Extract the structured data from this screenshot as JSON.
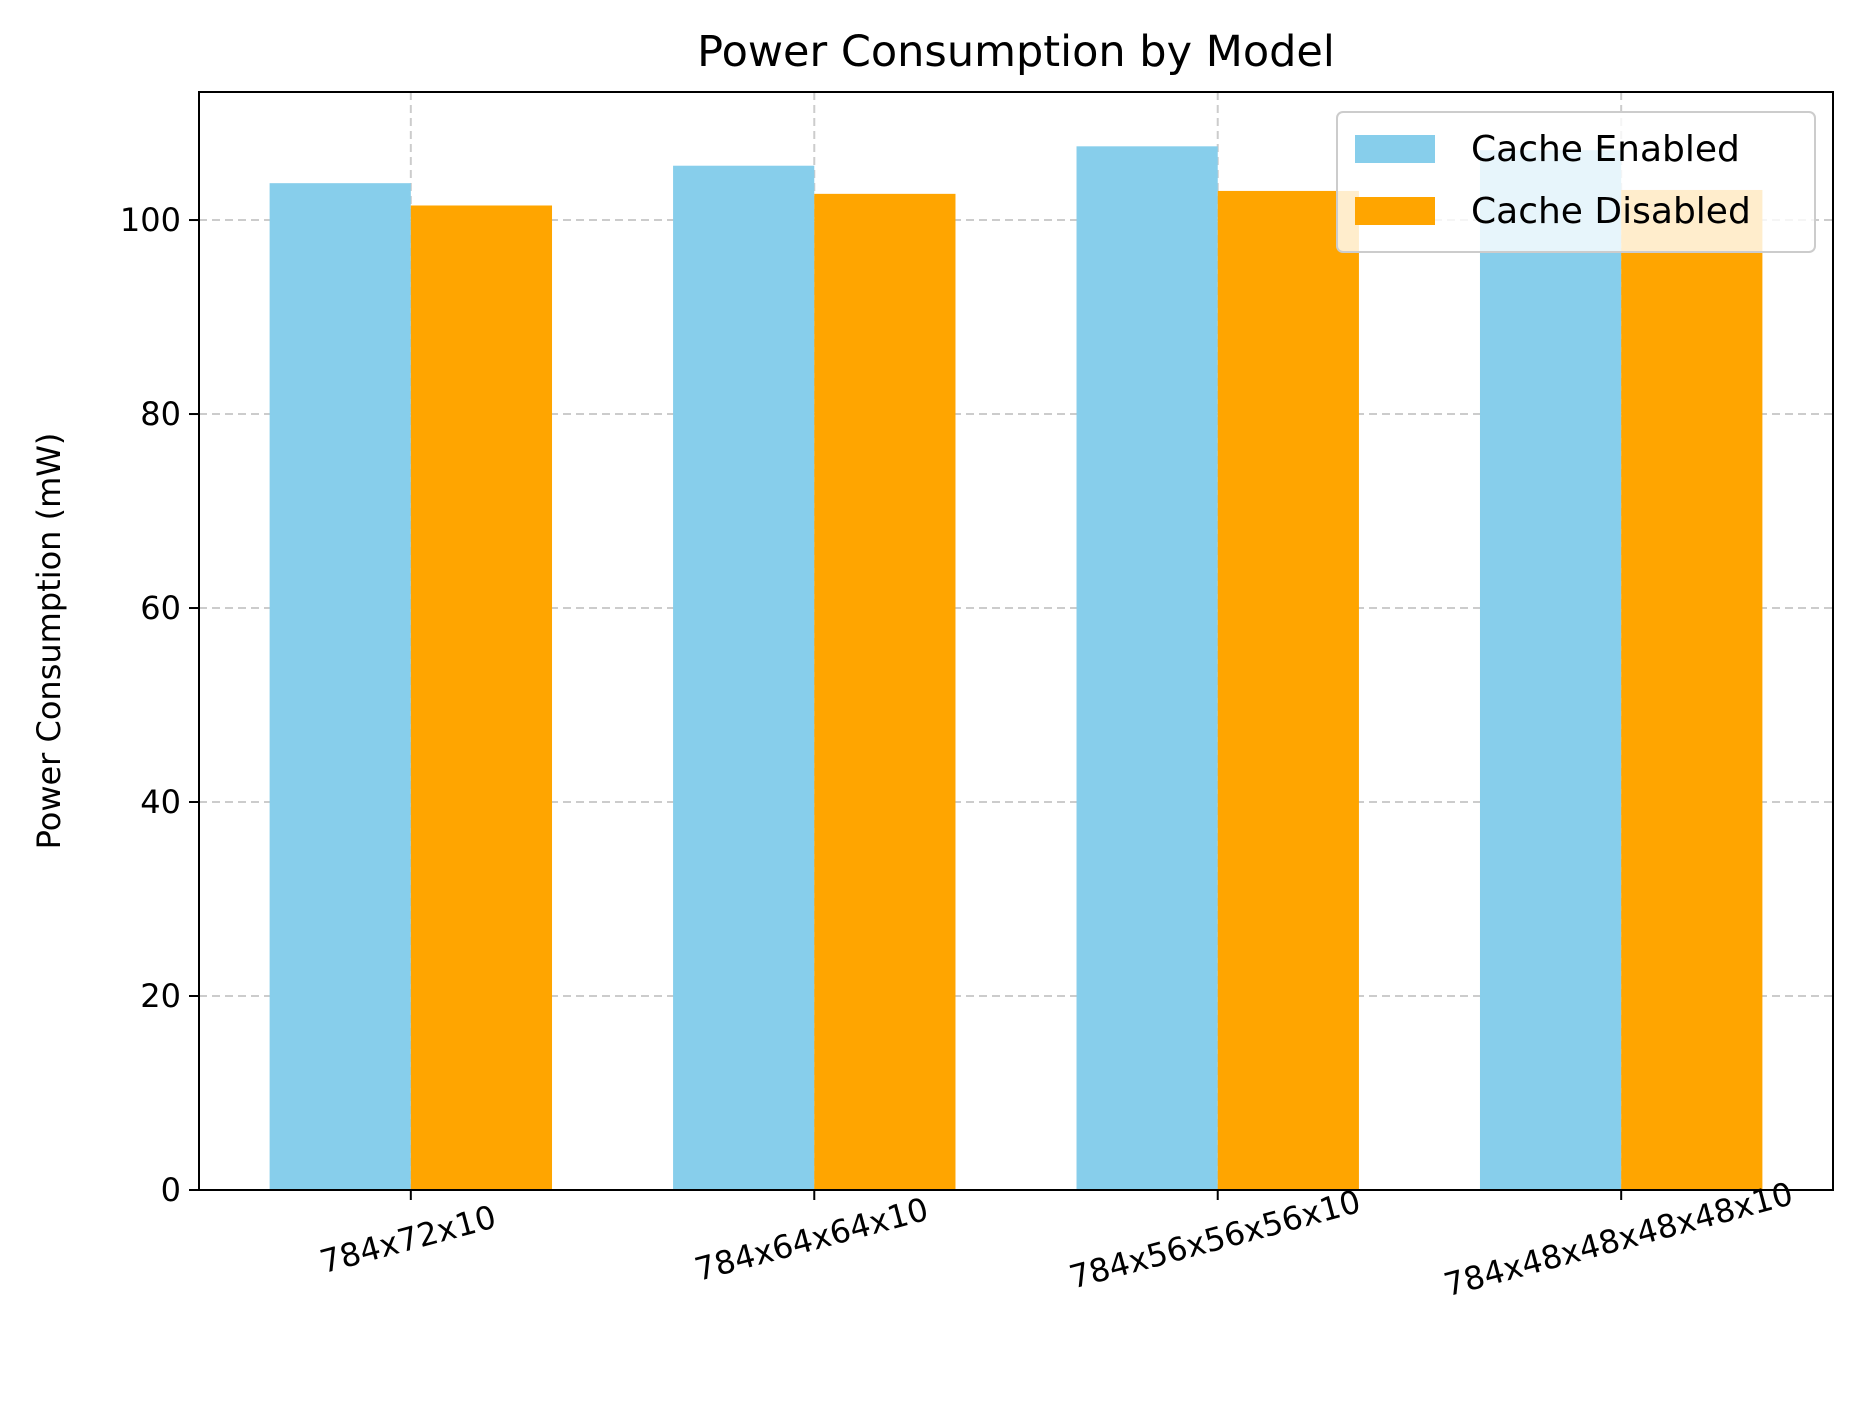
{
  "chart_data": {
    "type": "bar",
    "title": "Power Consumption by Model",
    "xlabel": "",
    "ylabel": "Power Consumption (mW)",
    "categories": [
      "784x72x10",
      "784x64x64x10",
      "784x56x56x56x10",
      "784x48x48x48x48x10"
    ],
    "series": [
      {
        "name": "Cache Enabled",
        "color": "#87CEEB",
        "values": [
          103.8,
          105.6,
          107.6,
          107.2
        ]
      },
      {
        "name": "Cache Disabled",
        "color": "#FFA500",
        "values": [
          101.5,
          102.7,
          103.0,
          103.1
        ]
      }
    ],
    "ylim": [
      0,
      113.2
    ],
    "yticks": [
      0,
      20,
      40,
      60,
      80,
      100
    ],
    "grid": true,
    "legend_position": "upper right",
    "xtick_rotation": 15
  }
}
